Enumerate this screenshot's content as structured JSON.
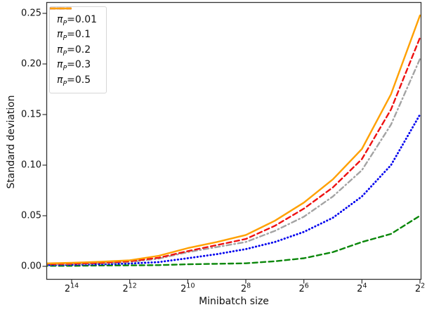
{
  "chart_data": {
    "type": "line",
    "title": "",
    "xlabel": "Minibatch size",
    "ylabel": "Standard deviation",
    "x_axis": {
      "scale": "log2",
      "direction": "reversed",
      "tick_base": "2",
      "tick_exponents": [
        "14",
        "12",
        "10",
        "8",
        "6",
        "4",
        "2"
      ],
      "range_powers": [
        15,
        2
      ]
    },
    "y_axis": {
      "tick_labels": [
        "0.00",
        "0.05",
        "0.10",
        "0.15",
        "0.20",
        "0.25"
      ],
      "tick_values": [
        0.0,
        0.05,
        0.1,
        0.15,
        0.2,
        0.25
      ],
      "ylim": [
        0,
        0.25
      ]
    },
    "grid": false,
    "legend_position": "upper-left",
    "x_powers": [
      15,
      14,
      13,
      12,
      11,
      10,
      9,
      8,
      7,
      6,
      5,
      4,
      3,
      2
    ],
    "series": [
      {
        "name": "pi_P=0.01",
        "label_pi": "π",
        "label_sub": "P",
        "label_value": "=0.01",
        "color": "#0a870a",
        "line_style": "dashed",
        "dash": "7,4.5",
        "width": 2.4,
        "values": [
          0.0005,
          0.0005,
          0.0008,
          0.001,
          0.0012,
          0.002,
          0.0025,
          0.003,
          0.005,
          0.008,
          0.014,
          0.024,
          0.032,
          0.05
        ]
      },
      {
        "name": "pi_P=0.1",
        "label_pi": "π",
        "label_sub": "P",
        "label_value": "=0.1",
        "color": "#0000ee",
        "line_style": "dotted",
        "dash": "0.5,4.2",
        "width": 2.8,
        "values": [
          0.0012,
          0.0015,
          0.002,
          0.0028,
          0.0042,
          0.008,
          0.012,
          0.017,
          0.024,
          0.034,
          0.048,
          0.069,
          0.1,
          0.15
        ]
      },
      {
        "name": "pi_P=0.2",
        "label_pi": "π",
        "label_sub": "P",
        "label_value": "=0.2",
        "color": "#a3a3a3",
        "line_style": "dashdot",
        "dash": "7,4,1.5,4",
        "width": 2.4,
        "values": [
          0.0018,
          0.0022,
          0.003,
          0.0042,
          0.0076,
          0.014,
          0.019,
          0.024,
          0.035,
          0.049,
          0.069,
          0.095,
          0.14,
          0.205
        ]
      },
      {
        "name": "pi_P=0.3",
        "label_pi": "π",
        "label_sub": "P",
        "label_value": "=0.3",
        "color": "#ee1111",
        "line_style": "dashed",
        "dash": "7,4.5",
        "width": 2.4,
        "values": [
          0.002,
          0.0026,
          0.0035,
          0.005,
          0.0085,
          0.015,
          0.021,
          0.027,
          0.04,
          0.057,
          0.078,
          0.106,
          0.155,
          0.226
        ]
      },
      {
        "name": "pi_P=0.5",
        "label_pi": "π",
        "label_sub": "P",
        "label_value": "=0.5",
        "color": "#ffa000",
        "line_style": "solid",
        "dash": "",
        "width": 2.4,
        "values": [
          0.0028,
          0.0035,
          0.0045,
          0.006,
          0.0104,
          0.018,
          0.024,
          0.031,
          0.045,
          0.063,
          0.086,
          0.116,
          0.17,
          0.248
        ]
      }
    ]
  }
}
